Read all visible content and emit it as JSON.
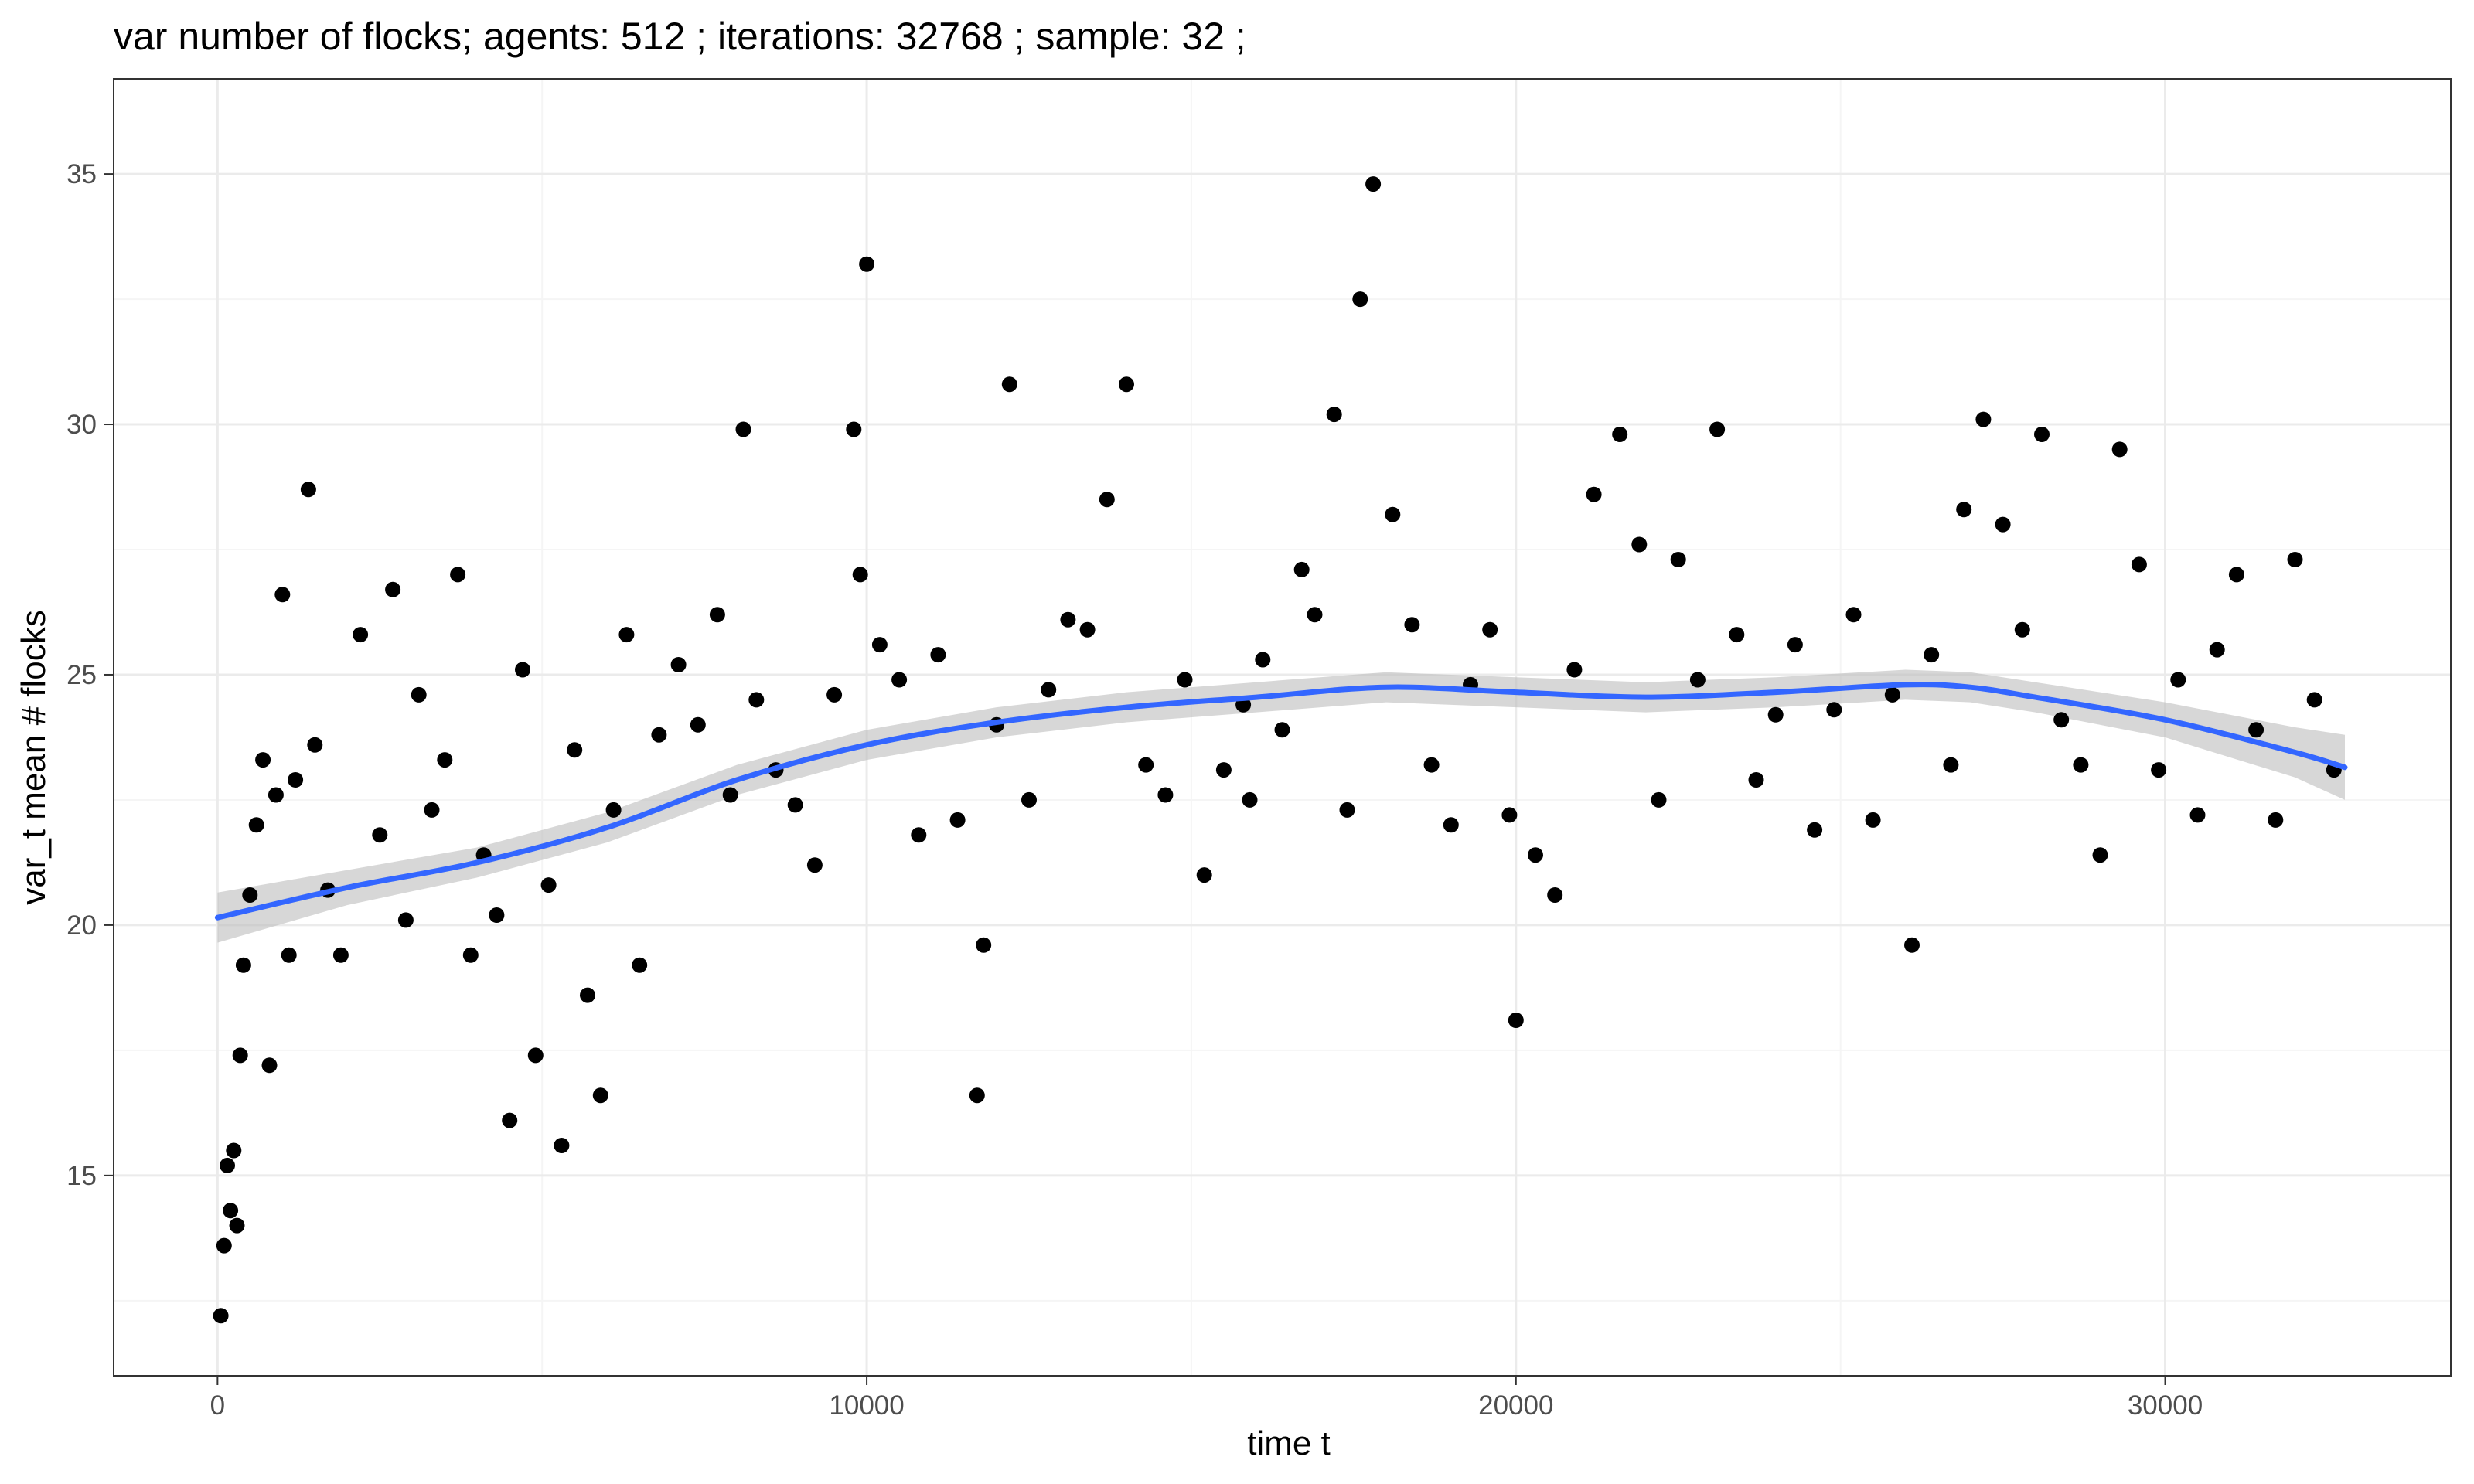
{
  "chart_data": {
    "type": "scatter",
    "title": "var number of flocks; agents: 512 ; iterations: 32768 ; sample: 32 ;",
    "xlabel": "time t",
    "ylabel": "var_t mean # flocks",
    "xlim": [
      -1600,
      34400
    ],
    "ylim": [
      11.0,
      36.9
    ],
    "x_ticks": [
      0,
      10000,
      20000,
      30000
    ],
    "x_tick_labels": [
      "0",
      "10000",
      "20000",
      "30000"
    ],
    "y_ticks": [
      15,
      20,
      25,
      30,
      35
    ],
    "y_tick_labels": [
      "15",
      "20",
      "25",
      "30",
      "35"
    ],
    "grid": true,
    "legend": "none",
    "colors": {
      "points": "#000000",
      "smooth_line": "#3366ff",
      "ribbon": "#bdbdbd",
      "grid_major": "#ebebeb",
      "grid_minor": "#f5f5f5",
      "panel_border": "#333333"
    },
    "series": [
      {
        "type": "points",
        "x": [
          50,
          100,
          150,
          200,
          250,
          300,
          350,
          400,
          500,
          600,
          700,
          800,
          900,
          1000,
          1100,
          1200,
          1400,
          1500,
          1700,
          1900,
          2200,
          2500,
          2700,
          2900,
          3100,
          3300,
          3500,
          3700,
          3900,
          4100,
          4300,
          4500,
          4700,
          4900,
          5100,
          5300,
          5500,
          5700,
          5900,
          6100,
          6300,
          6500,
          6800,
          7100,
          7400,
          7700,
          7900,
          8100,
          8300,
          8600,
          8900,
          9200,
          9500,
          9800,
          9900,
          10000,
          10200,
          10500,
          10800,
          11100,
          11400,
          11700,
          11800,
          12000,
          12200,
          12500,
          12800,
          13100,
          13400,
          13700,
          14000,
          14300,
          14600,
          14900,
          15200,
          15500,
          15800,
          15900,
          16100,
          16400,
          16700,
          16900,
          17200,
          17400,
          17600,
          17800,
          18100,
          18400,
          18700,
          19000,
          19300,
          19600,
          19900,
          20000,
          20300,
          20600,
          20900,
          21200,
          21600,
          21900,
          22200,
          22500,
          22800,
          23100,
          23400,
          23700,
          24000,
          24300,
          24600,
          24900,
          25200,
          25500,
          25800,
          26100,
          26400,
          26700,
          26900,
          27200,
          27500,
          27800,
          28100,
          28400,
          28700,
          29000,
          29300,
          29600,
          29900,
          30200,
          30500,
          30800,
          31100,
          31400,
          31700,
          32000,
          32300,
          32600
        ],
        "y": [
          12.2,
          13.6,
          15.2,
          14.3,
          15.5,
          14.0,
          17.4,
          19.2,
          20.6,
          22.0,
          23.3,
          17.2,
          22.6,
          26.6,
          19.4,
          22.9,
          28.7,
          23.6,
          20.7,
          19.4,
          25.8,
          21.8,
          26.7,
          20.1,
          24.6,
          22.3,
          23.3,
          27.0,
          19.4,
          21.4,
          20.2,
          16.1,
          25.1,
          17.4,
          20.8,
          15.6,
          23.5,
          18.6,
          16.6,
          22.3,
          25.8,
          19.2,
          23.8,
          25.2,
          24.0,
          26.2,
          22.6,
          29.9,
          24.5,
          23.1,
          22.4,
          21.2,
          24.6,
          29.9,
          27.0,
          33.2,
          25.6,
          24.9,
          21.8,
          25.4,
          22.1,
          16.6,
          19.6,
          24.0,
          30.8,
          22.5,
          24.7,
          26.1,
          25.9,
          28.5,
          30.8,
          23.2,
          22.6,
          24.9,
          21.0,
          23.1,
          24.4,
          22.5,
          25.3,
          23.9,
          27.1,
          26.2,
          30.2,
          22.3,
          32.5,
          34.8,
          28.2,
          26.0,
          23.2,
          22.0,
          24.8,
          25.9,
          22.2,
          18.1,
          21.4,
          20.6,
          25.1,
          28.6,
          29.8,
          27.6,
          22.5,
          27.3,
          24.9,
          29.9,
          25.8,
          22.9,
          24.2,
          25.6,
          21.9,
          24.3,
          26.2,
          22.1,
          24.6,
          19.6,
          25.4,
          23.2,
          28.3,
          30.1,
          28.0,
          25.9,
          29.8,
          24.1,
          23.2,
          21.4,
          29.5,
          27.2,
          23.1,
          24.9,
          22.2,
          25.5,
          27.0,
          23.9,
          22.1,
          27.3,
          24.5,
          23.1
        ],
        "note": "representative subset of scatter points read from the plot"
      },
      {
        "type": "smooth",
        "x": [
          0,
          2000,
          4000,
          6000,
          8000,
          10000,
          12000,
          14000,
          16000,
          18000,
          20000,
          22000,
          24000,
          26000,
          27000,
          28000,
          30000,
          32000,
          32768
        ],
        "y": [
          20.15,
          20.75,
          21.25,
          21.95,
          22.9,
          23.6,
          24.05,
          24.35,
          24.55,
          24.75,
          24.65,
          24.55,
          24.65,
          24.8,
          24.75,
          24.55,
          24.1,
          23.45,
          23.15
        ],
        "se_upper": [
          20.65,
          21.1,
          21.55,
          22.25,
          23.2,
          23.9,
          24.35,
          24.65,
          24.85,
          25.05,
          24.95,
          24.85,
          24.95,
          25.1,
          25.05,
          24.85,
          24.45,
          23.95,
          23.8
        ],
        "se_lower": [
          19.65,
          20.4,
          20.95,
          21.65,
          22.6,
          23.3,
          23.75,
          24.05,
          24.25,
          24.45,
          24.35,
          24.25,
          24.35,
          24.5,
          24.45,
          24.25,
          23.75,
          22.95,
          22.5
        ]
      }
    ]
  }
}
